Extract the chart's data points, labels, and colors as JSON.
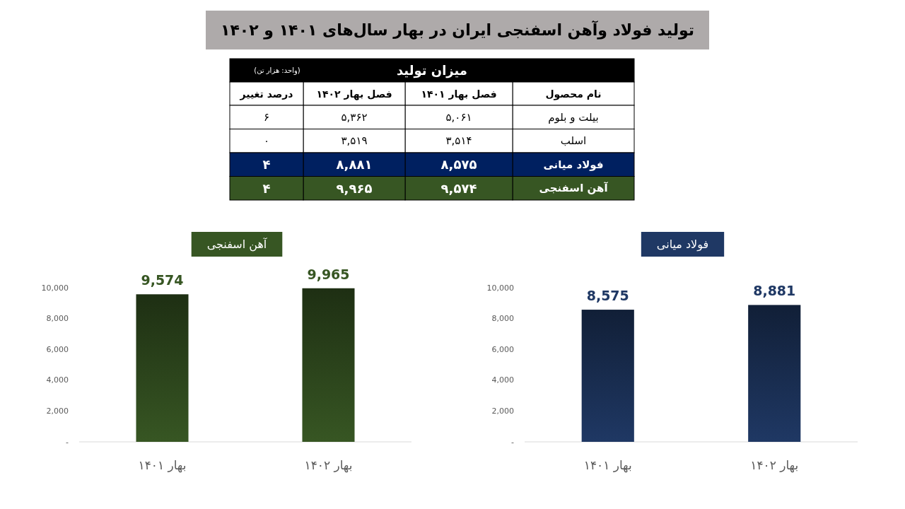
{
  "chart_data": [
    {
      "type": "other",
      "title": "تولید فولاد وآهن اسفنجی ایران در بهار سال‌های ۱۴۰۱ و ۱۴۰۲",
      "subtitle": "میزان تولید",
      "annotations": [
        "(واحد: هزار تن)"
      ],
      "ylabel": "نام محصول",
      "categories": [
        "بیلت و بلوم",
        "اسلب",
        "فولاد میانی",
        "آهن اسفنجی"
      ],
      "colors": [
        "#ffffff",
        "#ffffff",
        "#002060",
        "#375623"
      ],
      "series": [
        {
          "name": "فصل بهار ۱۴۰۱",
          "colors": [
            "#ffffff",
            "#ffffff",
            "#002060",
            "#375623"
          ],
          "values": [
            5061,
            3514,
            8575,
            9574
          ],
          "value_labels": [
            "۵,۰۶۱",
            "۳,۵۱۴",
            "۸,۵۷۵",
            "۹,۵۷۴"
          ]
        },
        {
          "name": "فصل بهار ۱۴۰۲",
          "colors": [
            "#ffffff",
            "#ffffff",
            "#002060",
            "#375623"
          ],
          "values": [
            5362,
            3519,
            8881,
            9965
          ],
          "value_labels": [
            "۵,۳۶۲",
            "۳,۵۱۹",
            "۸,۸۸۱",
            "۹,۹۶۵"
          ]
        },
        {
          "name": "درصد تغییر",
          "colors": [
            "#ffffff",
            "#ffffff",
            "#002060",
            "#375623"
          ],
          "values": [
            6,
            0,
            4,
            4
          ],
          "value_labels": [
            "۶",
            "۰",
            "۴",
            "۴"
          ]
        }
      ]
    },
    {
      "type": "bar",
      "title": "آهن اسفنجی",
      "categories": [
        "بهار ۱۴۰۱",
        "بهار ۱۴۰۲"
      ],
      "series": [
        {
          "color": "#375623",
          "values": [
            9574,
            9965
          ],
          "value_labels": [
            "9,574",
            "9,965"
          ]
        }
      ],
      "ylim": [
        0,
        10000
      ],
      "yticks": [
        {
          "value": 0,
          "label": "-"
        },
        {
          "value": 2000,
          "label": "2,000"
        },
        {
          "value": 4000,
          "label": "4,000"
        },
        {
          "value": 6000,
          "label": "6,000"
        },
        {
          "value": 8000,
          "label": "8,000"
        },
        {
          "value": 10000,
          "label": "10,000"
        }
      ]
    },
    {
      "type": "bar",
      "title": "فولاد میانی",
      "categories": [
        "بهار ۱۴۰۱",
        "بهار ۱۴۰۲"
      ],
      "series": [
        {
          "color": "#1f3864",
          "values": [
            8575,
            8881
          ],
          "value_labels": [
            "8,575",
            "8,881"
          ]
        }
      ],
      "ylim": [
        0,
        10000
      ],
      "yticks": [
        {
          "value": 0,
          "label": "-"
        },
        {
          "value": 2000,
          "label": "2,000"
        },
        {
          "value": 4000,
          "label": "4,000"
        },
        {
          "value": 6000,
          "label": "6,000"
        },
        {
          "value": 8000,
          "label": "8,000"
        },
        {
          "value": 10000,
          "label": "10,000"
        }
      ]
    }
  ]
}
